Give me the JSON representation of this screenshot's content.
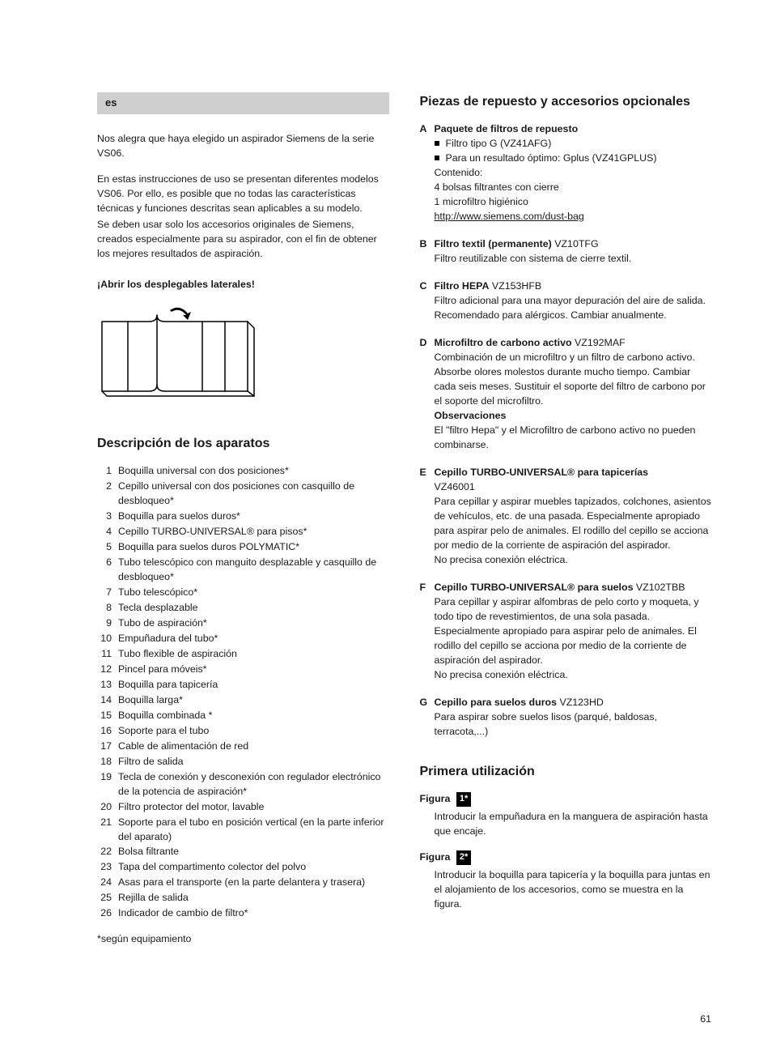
{
  "lang_tag": "es",
  "intro_p1": "Nos alegra que haya elegido un aspirador Siemens de la serie VS06.",
  "intro_p2": "En estas instrucciones de uso se presentan diferentes modelos VS06. Por ello, es posible que no todas las características técnicas y funciones descritas sean aplicables a su modelo.",
  "intro_p3": "Se deben usar solo los accesorios originales de Siemens, creados especialmente para su aspirador, con el fin de obtener los mejores resultados de aspiración.",
  "open_flaps": "¡Abrir los desplegables laterales!",
  "desc_heading": "Descripción de los aparatos",
  "desc_items": [
    "Boquilla universal con dos posiciones*",
    "Cepillo universal con dos posiciones con casquillo de desbloqueo*",
    "Boquilla para suelos duros*",
    "Cepillo TURBO-UNIVERSAL® para pisos*",
    "Boquilla para suelos duros POLYMATIC*",
    "Tubo telescópico con manguito desplazable y casquillo de desbloqueo*",
    "Tubo telescópico*",
    "Tecla desplazable",
    "Tubo de aspiración*",
    "Empuñadura del tubo*",
    "Tubo flexible de aspiración",
    "Pincel para móveis*",
    "Boquilla para tapicería",
    "Boquilla larga*",
    "Boquilla combinada *",
    "Soporte para el tubo",
    "Cable de alimentación de red",
    "Filtro de salida",
    "Tecla de conexión y desconexión con regulador electrónico de la potencia de aspiración*",
    "Filtro protector del motor, lavable",
    "Soporte para el tubo en posición vertical (en la parte inferior del aparato)",
    "Bolsa filtrante",
    "Tapa del compartimento colector del polvo",
    "Asas para el transporte (en la parte delantera y trasera)",
    "Rejilla de salida",
    "Indicador de cambio de filtro*"
  ],
  "desc_footnote": "*según equipamiento",
  "spare_heading": "Piezas de repuesto y accesorios opcionales",
  "spares": {
    "A": {
      "title": "Paquete de filtros de repuesto",
      "bullets": [
        "Filtro tipo G (VZ41AFG)",
        "Para un resultado óptimo: Gplus (VZ41GPLUS)"
      ],
      "lines": [
        "Contenido:",
        "4 bolsas filtrantes con cierre",
        "1 microfiltro higiénico"
      ],
      "link": "http://www.siemens.com/dust-bag"
    },
    "B": {
      "title": "Filtro textil (permanente)",
      "code": "VZ10TFG",
      "body": "Filtro reutilizable con sistema de cierre textil."
    },
    "C": {
      "title": "Filtro HEPA",
      "code": "VZ153HFB",
      "body": "Filtro adicional para una mayor depuración del aire de salida.\nRecomendado para alérgicos. Cambiar anualmente."
    },
    "D": {
      "title": "Microfiltro de carbono activo",
      "code": "VZ192MAF",
      "body": "Combinación de un microfiltro y un filtro de carbono activo. Absorbe olores molestos durante mucho tiempo. Cambiar cada seis meses. Sustituir el soporte del filtro de carbono por el soporte del microfiltro.",
      "obs_label": "Observaciones",
      "obs": "El \"filtro Hepa\" y el Microfiltro de carbono activo no pueden combinarse."
    },
    "E": {
      "title": "Cepillo TURBO-UNIVERSAL® para tapicerías",
      "code": "VZ46001",
      "body": "Para cepillar y aspirar muebles tapizados, colchones, asientos de vehículos, etc. de una pasada. Especialmente apropiado para aspirar pelo de animales. El rodillo del cepillo se acciona por medio de la corriente de aspiración del aspirador.\nNo precisa conexión eléctrica."
    },
    "F": {
      "title": "Cepillo TURBO-UNIVERSAL® para suelos",
      "code": "VZ102TBB",
      "body": "Para cepillar y aspirar alfombras de pelo corto y moqueta, y todo tipo de revestimientos, de una sola pasada. Especialmente apropiado para aspirar pelo de animales. El rodillo del cepillo se acciona por medio de la corriente de aspiración del aspirador.\nNo precisa conexión eléctrica."
    },
    "G": {
      "title": "Cepillo para suelos duros",
      "code": "VZ123HD",
      "body": "Para aspirar sobre suelos lisos (parqué, baldosas, terracota,...)"
    }
  },
  "first_use_heading": "Primera utilización",
  "figura_label": "Figura",
  "fig1_badge": "1*",
  "fig1_body": "Introducir la empuñadura en la manguera de aspiración hasta que encaje.",
  "fig2_badge": "2*",
  "fig2_body": "Introducir la boquilla para tapicería y la boquilla para juntas en el alojamiento de los accesorios, como se muestra en la figura.",
  "page_number": "61"
}
